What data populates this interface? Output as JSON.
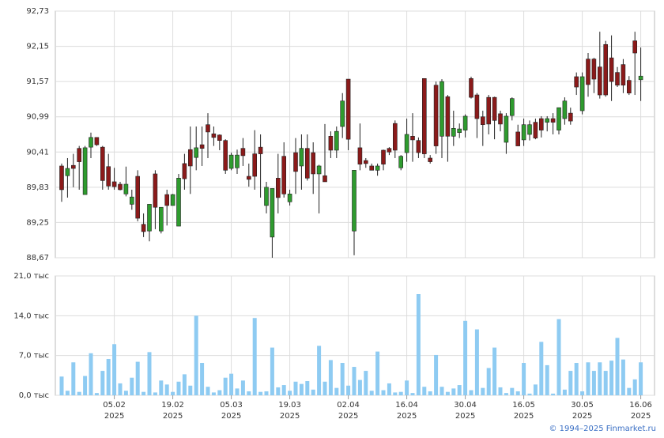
{
  "chart_data": [
    {
      "type": "candlestick",
      "ylim": [
        88.67,
        92.73
      ],
      "yticks": [
        {
          "value": 92.73,
          "label": "92,73"
        },
        {
          "value": 92.15,
          "label": "92,15"
        },
        {
          "value": 91.57,
          "label": "91,57"
        },
        {
          "value": 90.99,
          "label": "90,99"
        },
        {
          "value": 90.41,
          "label": "90,41"
        },
        {
          "value": 89.83,
          "label": "89,83"
        },
        {
          "value": 89.25,
          "label": "89,25"
        },
        {
          "value": 88.67,
          "label": "88,67"
        }
      ],
      "up_color": "#2e9b2e",
      "down_color": "#8b1a1a",
      "grid": true,
      "open": [
        90.18,
        90.02,
        90.19,
        90.47,
        89.71,
        90.49,
        90.65,
        90.49,
        90.17,
        89.92,
        89.88,
        89.72,
        89.55,
        90.01,
        89.22,
        89.11,
        90.05,
        89.11,
        89.71,
        89.53,
        89.19,
        90.22,
        90.45,
        90.32,
        90.53,
        90.86,
        90.71,
        90.69,
        90.6,
        90.14,
        90.15,
        90.47,
        90.01,
        90.38,
        90.49,
        89.53,
        89.01,
        89.98,
        90.34,
        89.59,
        90.4,
        90.18,
        90.47,
        90.4,
        90.05,
        90.02,
        90.67,
        90.44,
        90.83,
        91.61,
        89.11,
        90.48,
        90.27,
        90.18,
        90.11,
        90.44,
        90.47,
        90.88,
        90.15,
        90.4,
        90.67,
        90.6,
        91.62,
        90.31,
        91.51,
        90.67,
        91.32,
        90.67,
        90.73,
        90.77,
        91.62,
        91.35,
        90.99,
        91.31,
        91.31,
        91.04,
        90.57,
        91.01,
        90.74,
        90.61,
        90.7,
        90.9,
        90.96,
        90.9,
        90.96,
        90.77,
        90.96,
        91.05,
        91.65,
        91.09,
        91.94,
        91.94,
        91.81,
        92.18,
        91.96,
        91.72,
        91.85,
        91.59,
        92.24,
        91.6
      ],
      "high": [
        90.22,
        90.31,
        90.38,
        90.51,
        90.51,
        90.73,
        90.65,
        90.51,
        90.38,
        90.15,
        89.92,
        90.17,
        89.79,
        90.11,
        89.4,
        89.55,
        90.11,
        89.5,
        89.79,
        89.72,
        90.05,
        90.38,
        90.83,
        90.83,
        90.83,
        91.05,
        90.83,
        90.7,
        90.62,
        90.4,
        90.45,
        90.64,
        90.22,
        90.77,
        90.7,
        89.92,
        89.81,
        90.38,
        90.57,
        89.79,
        90.64,
        90.7,
        90.7,
        90.57,
        90.2,
        90.87,
        90.75,
        90.83,
        91.38,
        91.61,
        90.11,
        90.88,
        90.31,
        90.22,
        90.22,
        90.45,
        90.49,
        90.93,
        90.36,
        90.96,
        91.05,
        90.65,
        91.62,
        90.36,
        91.57,
        91.61,
        91.35,
        91.09,
        90.88,
        91.03,
        91.65,
        91.38,
        91.09,
        91.35,
        91.32,
        91.09,
        91.05,
        91.31,
        90.86,
        90.96,
        90.93,
        90.96,
        91.0,
        91.0,
        91.05,
        91.14,
        91.31,
        91.14,
        91.72,
        91.72,
        92.04,
        91.96,
        92.39,
        92.24,
        92.33,
        91.81,
        91.94,
        91.66,
        92.39,
        92.13
      ],
      "low": [
        89.59,
        89.66,
        89.83,
        89.79,
        89.71,
        90.31,
        90.51,
        89.79,
        89.79,
        89.79,
        89.78,
        89.68,
        89.46,
        89.27,
        89.01,
        88.94,
        89.14,
        89.07,
        89.2,
        89.53,
        89.19,
        89.79,
        89.72,
        90.11,
        90.18,
        90.31,
        90.51,
        90.44,
        90.05,
        90.11,
        90.05,
        90.18,
        89.84,
        89.79,
        89.66,
        89.4,
        88.67,
        89.4,
        89.66,
        89.53,
        89.72,
        89.79,
        89.94,
        89.72,
        89.4,
        89.92,
        90.31,
        90.31,
        90.64,
        90.44,
        88.71,
        90.11,
        90.15,
        90.11,
        90.02,
        90.11,
        90.36,
        90.31,
        90.11,
        90.25,
        90.25,
        90.31,
        90.31,
        90.22,
        90.38,
        90.31,
        90.25,
        90.51,
        90.64,
        90.65,
        91.29,
        90.64,
        90.51,
        90.7,
        90.62,
        90.75,
        90.38,
        90.93,
        90.51,
        90.51,
        90.6,
        90.62,
        90.65,
        90.75,
        90.7,
        90.7,
        90.86,
        90.86,
        91.35,
        91.03,
        91.32,
        91.38,
        91.29,
        91.32,
        91.25,
        91.48,
        91.38,
        91.35,
        91.35,
        91.25
      ],
      "close": [
        89.79,
        90.14,
        90.14,
        90.25,
        90.48,
        90.65,
        90.53,
        89.94,
        89.85,
        89.84,
        89.79,
        89.88,
        89.67,
        89.32,
        89.1,
        89.55,
        89.5,
        89.5,
        89.53,
        89.71,
        89.98,
        89.97,
        90.18,
        90.48,
        90.47,
        90.74,
        90.65,
        90.6,
        90.11,
        90.36,
        90.36,
        90.35,
        89.96,
        90.01,
        90.38,
        89.83,
        89.81,
        89.66,
        89.72,
        89.72,
        90.09,
        90.47,
        89.98,
        90.05,
        90.18,
        89.92,
        90.44,
        90.75,
        91.25,
        90.62,
        90.11,
        90.21,
        90.22,
        90.11,
        90.18,
        90.21,
        90.41,
        90.44,
        90.34,
        90.7,
        90.61,
        90.4,
        90.38,
        90.25,
        90.51,
        91.57,
        90.67,
        90.8,
        90.79,
        91.0,
        91.31,
        90.96,
        90.86,
        90.87,
        90.93,
        90.87,
        91.0,
        91.29,
        90.51,
        90.86,
        90.86,
        90.64,
        90.77,
        90.96,
        90.9,
        91.14,
        91.25,
        90.92,
        91.48,
        91.65,
        91.52,
        91.61,
        91.35,
        91.35,
        91.57,
        91.51,
        91.51,
        91.38,
        92.04,
        91.66
      ]
    },
    {
      "type": "bar",
      "ylim": [
        0,
        21
      ],
      "yticks": [
        {
          "value": 21,
          "label": "21,0 тыс"
        },
        {
          "value": 14,
          "label": "14,0 тыс"
        },
        {
          "value": 7,
          "label": "7,0 тыс"
        },
        {
          "value": 0,
          "label": "0,0 тыс"
        }
      ],
      "color": "#8ecbf2",
      "grid": true,
      "values": [
        3.3,
        0.8,
        5.8,
        0.6,
        3.4,
        7.4,
        0.4,
        4.3,
        6.4,
        9.0,
        2.1,
        0.8,
        3.1,
        5.9,
        0.6,
        7.6,
        0.5,
        2.6,
        1.9,
        0.6,
        2.4,
        3.7,
        1.7,
        14.0,
        5.7,
        1.5,
        0.5,
        0.9,
        3.1,
        3.8,
        1.2,
        2.6,
        0.7,
        13.6,
        0.6,
        0.7,
        8.4,
        1.4,
        1.8,
        0.8,
        2.4,
        2.0,
        2.5,
        1.0,
        8.7,
        2.4,
        6.2,
        1.3,
        5.7,
        1.7,
        5.0,
        2.7,
        4.3,
        0.8,
        7.7,
        0.9,
        2.1,
        0.5,
        0.6,
        2.6,
        0.4,
        17.8,
        1.5,
        0.7,
        7.1,
        1.5,
        0.6,
        1.2,
        1.8,
        13.1,
        0.9,
        11.6,
        1.3,
        4.8,
        8.4,
        1.4,
        0.4,
        1.3,
        0.7,
        5.7,
        0.3,
        1.9,
        9.4,
        5.3,
        0.3,
        13.4,
        1.0,
        4.3,
        5.7,
        0.7,
        5.8,
        4.3,
        5.8,
        4.3,
        6.1,
        10.1,
        6.3,
        1.3,
        2.8,
        5.8
      ],
      "xticks": [
        {
          "value": 9,
          "label": "05.02"
        },
        {
          "value": 19,
          "label": "19.02"
        },
        {
          "value": 29,
          "label": "05.03"
        },
        {
          "value": 39,
          "label": "19.03"
        },
        {
          "value": 49,
          "label": "02.04"
        },
        {
          "value": 59,
          "label": "16.04"
        },
        {
          "value": 69,
          "label": "30.04"
        },
        {
          "value": 79,
          "label": "16.05"
        },
        {
          "value": 89,
          "label": "30.05"
        },
        {
          "value": 99,
          "label": "16.06"
        }
      ],
      "xtick_year": "2025"
    }
  ],
  "footer": "© 1994–2025 Finmarket.ru"
}
